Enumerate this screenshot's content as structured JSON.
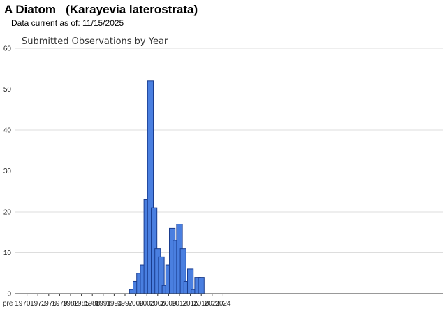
{
  "header": {
    "common_name": "A Diatom",
    "scientific_name": "(Karayevia laterostrata)",
    "data_current": "Data current as of: 11/15/2025"
  },
  "chart_data": {
    "type": "bar",
    "title": "Submitted Observations by Year",
    "xlabel": "",
    "ylabel": "",
    "ylim": [
      0,
      60
    ],
    "y_ticks": [
      0,
      10,
      20,
      30,
      40,
      50,
      60
    ],
    "grid": true,
    "legend": "none",
    "bar_color": "#4a7fe0",
    "bar_edge_color": "#1a3d8f",
    "x_tick_labels": [
      "pre 1970",
      "1973",
      "1976",
      "1979",
      "1982",
      "1985",
      "1988",
      "1991",
      "1994",
      "1997",
      "2000",
      "2003",
      "2006",
      "2009",
      "2012",
      "2015",
      "2018",
      "2021",
      "2024"
    ],
    "categories": [
      "pre 1970",
      "1971",
      "1972",
      "1973",
      "1974",
      "1975",
      "1976",
      "1977",
      "1978",
      "1979",
      "1980",
      "1981",
      "1982",
      "1983",
      "1984",
      "1985",
      "1986",
      "1987",
      "1988",
      "1989",
      "1990",
      "1991",
      "1992",
      "1993",
      "1994",
      "1995",
      "1996",
      "1997",
      "1998",
      "1999",
      "2000",
      "2001",
      "2002",
      "2003",
      "2004",
      "2005",
      "2006",
      "2007",
      "2008",
      "2009",
      "2010",
      "2011",
      "2012",
      "2013",
      "2014",
      "2015",
      "2016",
      "2017",
      "2018",
      "2019",
      "2020",
      "2021",
      "2022",
      "2023",
      "2024",
      "2025"
    ],
    "values": [
      0,
      0,
      0,
      0,
      0,
      0,
      0,
      0,
      0,
      0,
      0,
      0,
      0,
      0,
      0,
      0,
      0,
      0,
      0,
      0,
      0,
      0,
      0,
      0,
      0,
      0,
      0,
      0,
      0,
      1,
      3,
      5,
      7,
      23,
      52,
      21,
      11,
      9,
      2,
      7,
      16,
      13,
      17,
      11,
      3,
      6,
      1,
      4,
      4,
      0,
      0,
      0,
      0,
      0,
      0,
      0
    ]
  }
}
